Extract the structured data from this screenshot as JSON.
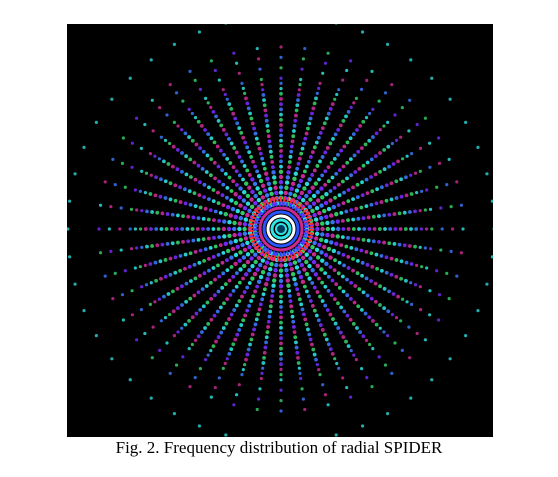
{
  "figure": {
    "caption": "Fig. 2. Frequency distribution of radial SPIDER",
    "spokes": 48,
    "background": "#000000",
    "palette": [
      "#2ee6e6",
      "#3a7bff",
      "#7a2cff",
      "#d02c9a",
      "#35d46a",
      "#ffffff"
    ],
    "center_rings": [
      "#ff3030",
      "#3344ff",
      "#cc2a8a",
      "#2a55ff",
      "#ffffff",
      "#2ee6e6"
    ]
  }
}
